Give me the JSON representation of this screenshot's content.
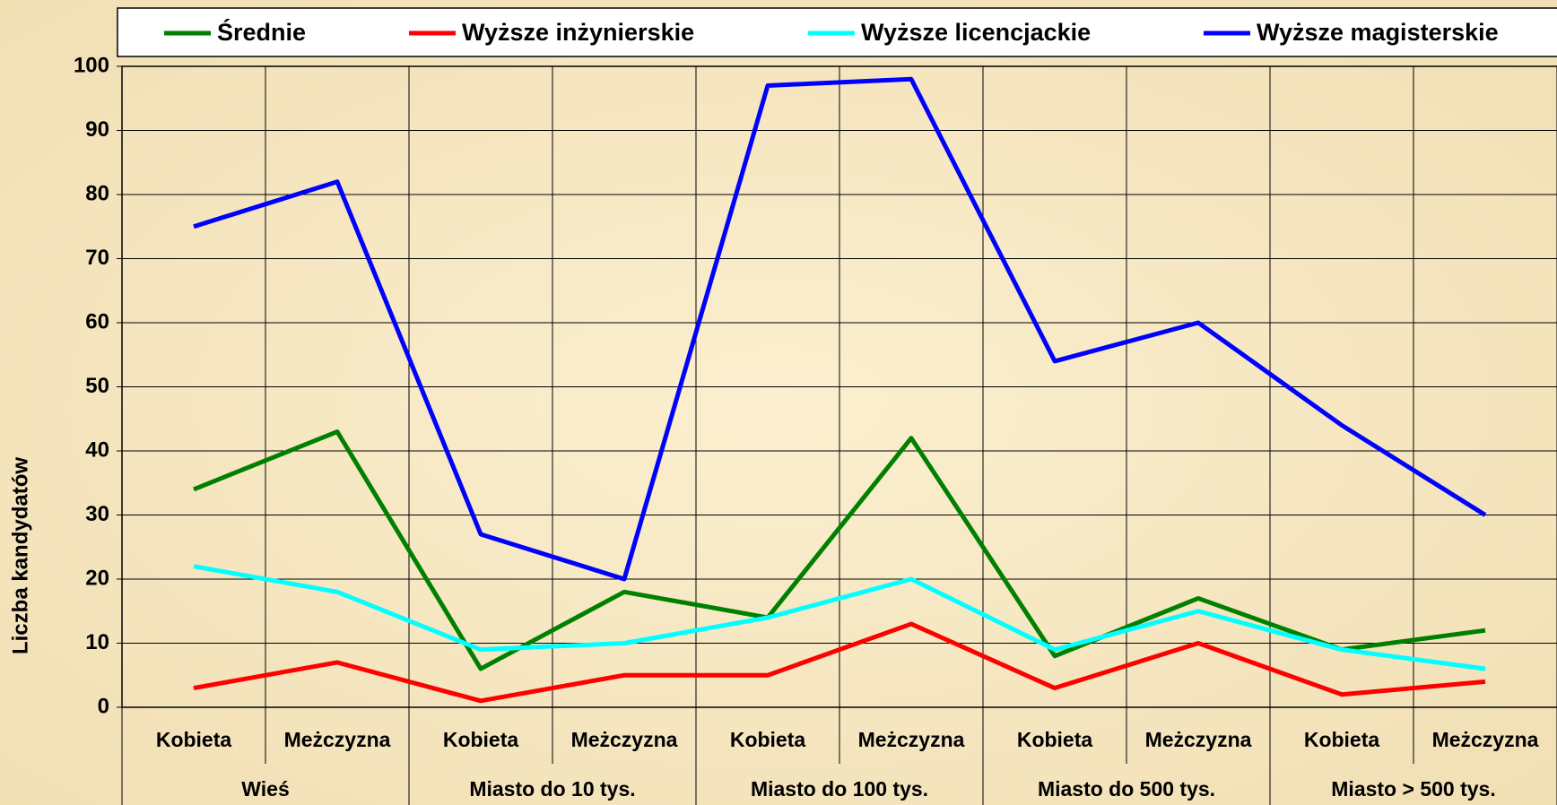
{
  "chart_data": {
    "type": "line",
    "y_label": "Liczba kandydatów",
    "categories": [
      "Kobieta",
      "Meżczyzna",
      "Kobieta",
      "Meżczyzna",
      "Kobieta",
      "Meżczyzna",
      "Kobieta",
      "Meżczyzna",
      "Kobieta",
      "Meżczyzna"
    ],
    "groups": [
      "Wieś",
      "Miasto do 10 tys.",
      "Miasto do 100 tys.",
      "Miasto do 500 tys.",
      "Miasto > 500 tys."
    ],
    "series": [
      {
        "name": "Średnie",
        "color": "#008000",
        "values": [
          34,
          43,
          6,
          18,
          14,
          42,
          8,
          17,
          9,
          12
        ]
      },
      {
        "name": "Wyższe inżynierskie",
        "color": "#ff0000",
        "values": [
          3,
          7,
          1,
          5,
          5,
          13,
          3,
          10,
          2,
          4
        ]
      },
      {
        "name": "Wyższe licencjackie",
        "color": "#00ffff",
        "values": [
          22,
          18,
          9,
          10,
          14,
          20,
          9,
          15,
          9,
          6
        ]
      },
      {
        "name": "Wyższe magisterskie",
        "color": "#0000ff",
        "values": [
          75,
          82,
          27,
          20,
          97,
          98,
          54,
          60,
          44,
          30
        ]
      }
    ],
    "ylim": [
      0,
      100
    ],
    "yticks": [
      0,
      10,
      20,
      30,
      40,
      50,
      60,
      70,
      80,
      90,
      100
    ],
    "grid": true,
    "legend": "top"
  }
}
